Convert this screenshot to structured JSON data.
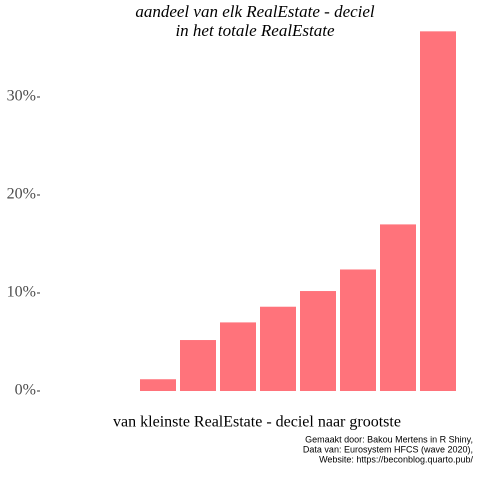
{
  "chart_data": {
    "type": "bar",
    "title": [
      "aandeel van elk RealEstate - deciel",
      "in het totale RealEstate"
    ],
    "x_label": "van kleinste RealEstate - deciel naar grootste",
    "caption": [
      "Gemaakt door: Bakou Mertens in R Shiny,",
      "Data van: Eurosystem HFCS (wave 2020),",
      "Website: https://beconblog.quarto.pub/"
    ],
    "categories": [
      null,
      null,
      null,
      null,
      null,
      null,
      null,
      null,
      null,
      null
    ],
    "values": [
      0,
      0,
      1.2,
      5.2,
      7.0,
      8.6,
      10.2,
      12.4,
      17.0,
      36.7
    ],
    "color": "#ff737b",
    "ylim": [
      0,
      37
    ],
    "yticks": [
      {
        "value": 0,
        "label": "0%"
      },
      {
        "value": 10,
        "label": "10%"
      },
      {
        "value": 20,
        "label": "20%"
      },
      {
        "value": 30,
        "label": "30%"
      }
    ],
    "grid": false
  }
}
